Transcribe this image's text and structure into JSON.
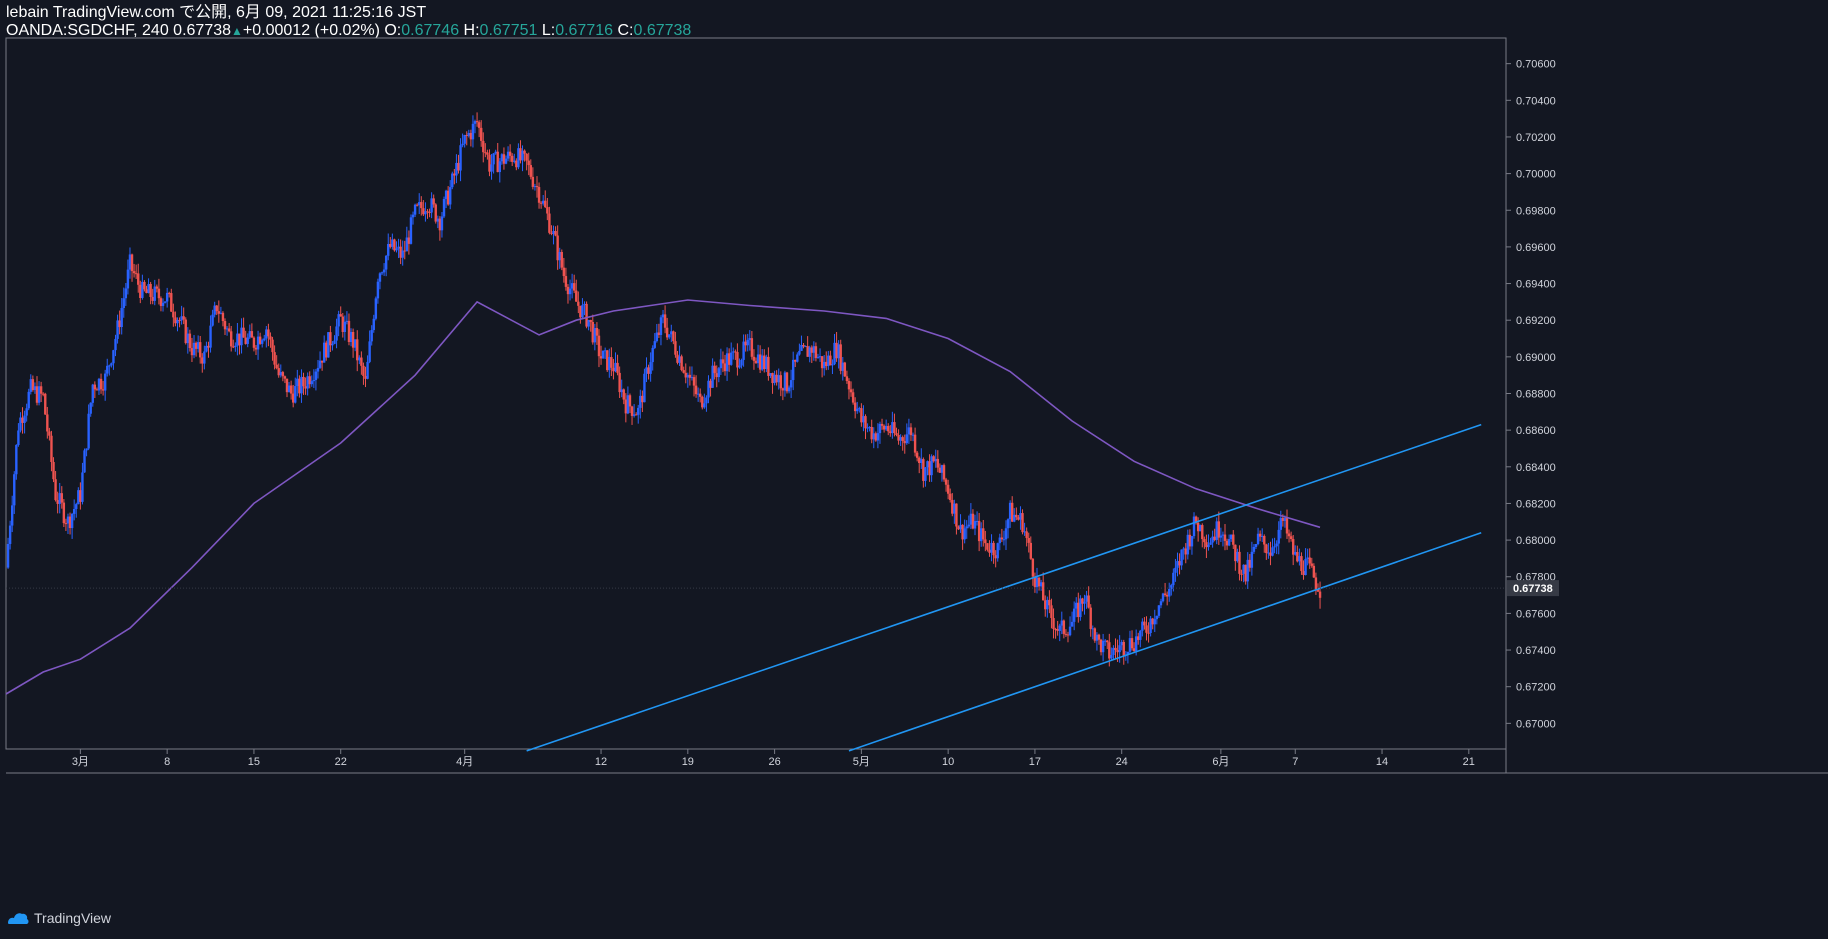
{
  "header": {
    "line1": "lebain TradingView.com で公開, 6月 09, 2021 11:25:16 JST",
    "symbol": "OANDA:SGDCHF, 240",
    "last": "0.67738",
    "change": "+0.00012 (+0.02%)",
    "o_label": "O:",
    "o_value": "0.67746",
    "h_label": "H:",
    "h_value": "0.67751",
    "l_label": "L:",
    "l_value": "0.67716",
    "c_label": "C:",
    "c_value": "0.67738"
  },
  "footer": {
    "brand": "TradingView",
    "icon": "tradingview-logo-icon"
  },
  "colors": {
    "background": "#131722",
    "up": "#2962ff",
    "down": "#ef5350",
    "ma": "#7e57c2",
    "channel": "#2196f3",
    "axis_text": "#d1d4dc",
    "price_label_bg": "#363a45"
  },
  "chart_data": {
    "type": "candlestick",
    "xlabel": "",
    "ylabel": "",
    "ylim": [
      0.6686,
      0.7074
    ],
    "x_range_days": [
      "2021-02-23",
      "2021-06-24"
    ],
    "grid": false,
    "y_ticks": [
      "0.67000",
      "0.67200",
      "0.67400",
      "0.67600",
      "0.67800",
      "0.68000",
      "0.68200",
      "0.68400",
      "0.68600",
      "0.68800",
      "0.69000",
      "0.69200",
      "0.69400",
      "0.69600",
      "0.69800",
      "0.70000",
      "0.70200",
      "0.70400",
      "0.70600"
    ],
    "x_ticks": [
      {
        "label": "3月",
        "date": "2021-03-01"
      },
      {
        "label": "8",
        "date": "2021-03-08"
      },
      {
        "label": "15",
        "date": "2021-03-15"
      },
      {
        "label": "22",
        "date": "2021-03-22"
      },
      {
        "label": "4月",
        "date": "2021-04-01"
      },
      {
        "label": "12",
        "date": "2021-04-12"
      },
      {
        "label": "19",
        "date": "2021-04-19"
      },
      {
        "label": "26",
        "date": "2021-04-26"
      },
      {
        "label": "5月",
        "date": "2021-05-03"
      },
      {
        "label": "10",
        "date": "2021-05-10"
      },
      {
        "label": "17",
        "date": "2021-05-17"
      },
      {
        "label": "24",
        "date": "2021-05-24"
      },
      {
        "label": "6月",
        "date": "2021-06-01"
      },
      {
        "label": "7",
        "date": "2021-06-07"
      },
      {
        "label": "14",
        "date": "2021-06-14"
      },
      {
        "label": "21",
        "date": "2021-06-21"
      }
    ],
    "last_price": {
      "value": 0.67738,
      "label": "0.67738"
    },
    "close_path": [
      [
        "2021-02-23",
        0.6785
      ],
      [
        "2021-02-24",
        0.6863
      ],
      [
        "2021-02-25",
        0.6882
      ],
      [
        "2021-02-26",
        0.6878
      ],
      [
        "2021-02-27",
        0.6825
      ],
      [
        "2021-02-28",
        0.681
      ],
      [
        "2021-03-01",
        0.6825
      ],
      [
        "2021-03-02",
        0.6885
      ],
      [
        "2021-03-03",
        0.6888
      ],
      [
        "2021-03-04",
        0.6915
      ],
      [
        "2021-03-05",
        0.695
      ],
      [
        "2021-03-06",
        0.6935
      ],
      [
        "2021-03-08",
        0.6932
      ],
      [
        "2021-03-09",
        0.692
      ],
      [
        "2021-03-10",
        0.6905
      ],
      [
        "2021-03-11",
        0.69
      ],
      [
        "2021-03-12",
        0.6928
      ],
      [
        "2021-03-13",
        0.6912
      ],
      [
        "2021-03-15",
        0.6908
      ],
      [
        "2021-03-16",
        0.6916
      ],
      [
        "2021-03-17",
        0.689
      ],
      [
        "2021-03-18",
        0.688
      ],
      [
        "2021-03-19",
        0.6885
      ],
      [
        "2021-03-20",
        0.6895
      ],
      [
        "2021-03-22",
        0.692
      ],
      [
        "2021-03-23",
        0.6908
      ],
      [
        "2021-03-24",
        0.6885
      ],
      [
        "2021-03-25",
        0.6945
      ],
      [
        "2021-03-26",
        0.696
      ],
      [
        "2021-03-27",
        0.6955
      ],
      [
        "2021-03-28",
        0.6978
      ],
      [
        "2021-03-29",
        0.6985
      ],
      [
        "2021-03-30",
        0.6975
      ],
      [
        "2021-03-31",
        0.6995
      ],
      [
        "2021-04-01",
        0.7018
      ],
      [
        "2021-04-02",
        0.7028
      ],
      [
        "2021-04-03",
        0.7005
      ],
      [
        "2021-04-05",
        0.701
      ],
      [
        "2021-04-06",
        0.7005
      ],
      [
        "2021-04-07",
        0.699
      ],
      [
        "2021-04-08",
        0.697
      ],
      [
        "2021-04-09",
        0.6945
      ],
      [
        "2021-04-10",
        0.693
      ],
      [
        "2021-04-11",
        0.692
      ],
      [
        "2021-04-12",
        0.69
      ],
      [
        "2021-04-13",
        0.6895
      ],
      [
        "2021-04-14",
        0.6875
      ],
      [
        "2021-04-15",
        0.687
      ],
      [
        "2021-04-16",
        0.69
      ],
      [
        "2021-04-17",
        0.692
      ],
      [
        "2021-04-18",
        0.6905
      ],
      [
        "2021-04-19",
        0.689
      ],
      [
        "2021-04-20",
        0.6875
      ],
      [
        "2021-04-21",
        0.689
      ],
      [
        "2021-04-22",
        0.6898
      ],
      [
        "2021-04-23",
        0.69
      ],
      [
        "2021-04-24",
        0.6905
      ],
      [
        "2021-04-26",
        0.689
      ],
      [
        "2021-04-27",
        0.6885
      ],
      [
        "2021-04-28",
        0.69
      ],
      [
        "2021-04-29",
        0.6905
      ],
      [
        "2021-04-30",
        0.6895
      ],
      [
        "2021-05-01",
        0.6905
      ],
      [
        "2021-05-02",
        0.6885
      ],
      [
        "2021-05-03",
        0.6865
      ],
      [
        "2021-05-04",
        0.6858
      ],
      [
        "2021-05-05",
        0.6862
      ],
      [
        "2021-05-06",
        0.6855
      ],
      [
        "2021-05-07",
        0.686
      ],
      [
        "2021-05-08",
        0.6838
      ],
      [
        "2021-05-09",
        0.6842
      ],
      [
        "2021-05-10",
        0.6828
      ],
      [
        "2021-05-11",
        0.6805
      ],
      [
        "2021-05-12",
        0.681
      ],
      [
        "2021-05-13",
        0.6798
      ],
      [
        "2021-05-14",
        0.6795
      ],
      [
        "2021-05-15",
        0.6815
      ],
      [
        "2021-05-16",
        0.681
      ],
      [
        "2021-05-17",
        0.678
      ],
      [
        "2021-05-18",
        0.6762
      ],
      [
        "2021-05-19",
        0.675
      ],
      [
        "2021-05-20",
        0.6755
      ],
      [
        "2021-05-21",
        0.677
      ],
      [
        "2021-05-22",
        0.6745
      ],
      [
        "2021-05-23",
        0.6738
      ],
      [
        "2021-05-24",
        0.6742
      ],
      [
        "2021-05-25",
        0.6745
      ],
      [
        "2021-05-26",
        0.6752
      ],
      [
        "2021-05-27",
        0.6765
      ],
      [
        "2021-05-28",
        0.6775
      ],
      [
        "2021-05-29",
        0.6795
      ],
      [
        "2021-05-30",
        0.681
      ],
      [
        "2021-05-31",
        0.68
      ],
      [
        "2021-06-01",
        0.6808
      ],
      [
        "2021-06-02",
        0.6795
      ],
      [
        "2021-06-03",
        0.678
      ],
      [
        "2021-06-04",
        0.68
      ],
      [
        "2021-06-05",
        0.6795
      ],
      [
        "2021-06-06",
        0.681
      ],
      [
        "2021-06-07",
        0.679
      ],
      [
        "2021-06-08",
        0.6785
      ],
      [
        "2021-06-09",
        0.6774
      ]
    ],
    "moving_average": {
      "color": "#7e57c2",
      "points": [
        [
          "2021-02-23",
          0.6716
        ],
        [
          "2021-02-26",
          0.6728
        ],
        [
          "2021-03-01",
          0.6735
        ],
        [
          "2021-03-05",
          0.6752
        ],
        [
          "2021-03-10",
          0.6785
        ],
        [
          "2021-03-15",
          0.682
        ],
        [
          "2021-03-22",
          0.6853
        ],
        [
          "2021-03-28",
          0.689
        ],
        [
          "2021-04-02",
          0.693
        ],
        [
          "2021-04-07",
          0.6912
        ],
        [
          "2021-04-10",
          0.692
        ],
        [
          "2021-04-13",
          0.6925
        ],
        [
          "2021-04-16",
          0.6928
        ],
        [
          "2021-04-19",
          0.6931
        ],
        [
          "2021-04-24",
          0.6928
        ],
        [
          "2021-04-30",
          0.6925
        ],
        [
          "2021-05-05",
          0.6921
        ],
        [
          "2021-05-10",
          0.691
        ],
        [
          "2021-05-15",
          0.6892
        ],
        [
          "2021-05-20",
          0.6865
        ],
        [
          "2021-05-25",
          0.6843
        ],
        [
          "2021-05-30",
          0.6828
        ],
        [
          "2021-06-04",
          0.6817
        ],
        [
          "2021-06-09",
          0.6807
        ]
      ]
    },
    "channel_lines": [
      {
        "start": [
          "2021-04-06",
          0.6685
        ],
        "end": [
          "2021-06-22",
          0.6863
        ]
      },
      {
        "start": [
          "2021-05-02",
          0.6685
        ],
        "end": [
          "2021-06-22",
          0.6804
        ]
      }
    ]
  }
}
